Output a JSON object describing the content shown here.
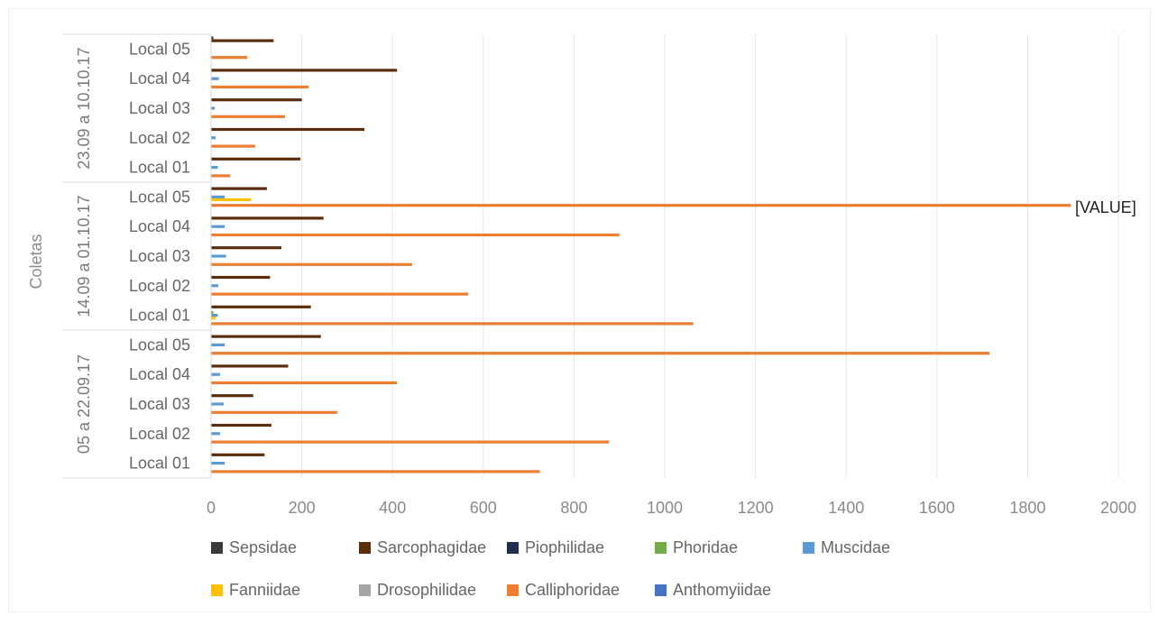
{
  "chart_data": {
    "type": "bar",
    "orientation": "horizontal",
    "ylabel": "Coletas",
    "value_annotation": "[VALUE]",
    "groups": [
      "05 a 22.09.17",
      "14.09 a 01.10.17",
      "23.09 a 10.10.17"
    ],
    "locations": [
      "Local 01",
      "Local 02",
      "Local 03",
      "Local 04",
      "Local 05"
    ],
    "xlim": [
      0,
      2000
    ],
    "x_ticks": [
      "0",
      "200",
      "400",
      "600",
      "800",
      "1000",
      "1200",
      "1400",
      "1600",
      "1800",
      "2000"
    ],
    "grid": true,
    "legend_position": "bottom",
    "series": [
      {
        "name": "Sepsidae",
        "color": "#3a3a3a",
        "values": [
          0,
          0,
          0,
          0,
          0,
          0,
          0,
          0,
          0,
          0,
          0,
          0,
          0,
          0,
          5
        ]
      },
      {
        "name": "Sarcophagidae",
        "color": "#5a2d0c",
        "values": [
          118,
          133,
          93,
          170,
          242,
          220,
          130,
          155,
          248,
          123,
          197,
          338,
          200,
          410,
          138
        ]
      },
      {
        "name": "Piophilidae",
        "color": "#1f2d4f",
        "values": [
          0,
          0,
          0,
          0,
          0,
          0,
          0,
          0,
          0,
          0,
          0,
          0,
          0,
          0,
          0
        ]
      },
      {
        "name": "Phoridae",
        "color": "#70ad47",
        "values": [
          0,
          0,
          0,
          0,
          0,
          5,
          0,
          0,
          0,
          0,
          0,
          0,
          0,
          0,
          0
        ]
      },
      {
        "name": "Muscidae",
        "color": "#5b9bd5",
        "values": [
          30,
          20,
          28,
          20,
          30,
          15,
          16,
          33,
          30,
          30,
          15,
          10,
          8,
          17,
          0
        ]
      },
      {
        "name": "Fanniidae",
        "color": "#ffc000",
        "values": [
          0,
          0,
          0,
          0,
          0,
          10,
          0,
          0,
          0,
          88,
          0,
          0,
          0,
          0,
          0
        ]
      },
      {
        "name": "Drosophilidae",
        "color": "#a5a5a5",
        "values": [
          0,
          0,
          0,
          0,
          0,
          0,
          0,
          0,
          0,
          0,
          0,
          0,
          0,
          0,
          0
        ]
      },
      {
        "name": "Calliphoridae",
        "color": "#ed7d31",
        "values": [
          725,
          877,
          278,
          410,
          1716,
          1063,
          567,
          443,
          900,
          1895,
          42,
          97,
          163,
          215,
          80
        ]
      },
      {
        "name": "Anthomyiidae",
        "color": "#4472c4",
        "values": [
          0,
          0,
          0,
          0,
          0,
          0,
          0,
          0,
          0,
          0,
          0,
          0,
          0,
          0,
          0
        ]
      }
    ]
  }
}
